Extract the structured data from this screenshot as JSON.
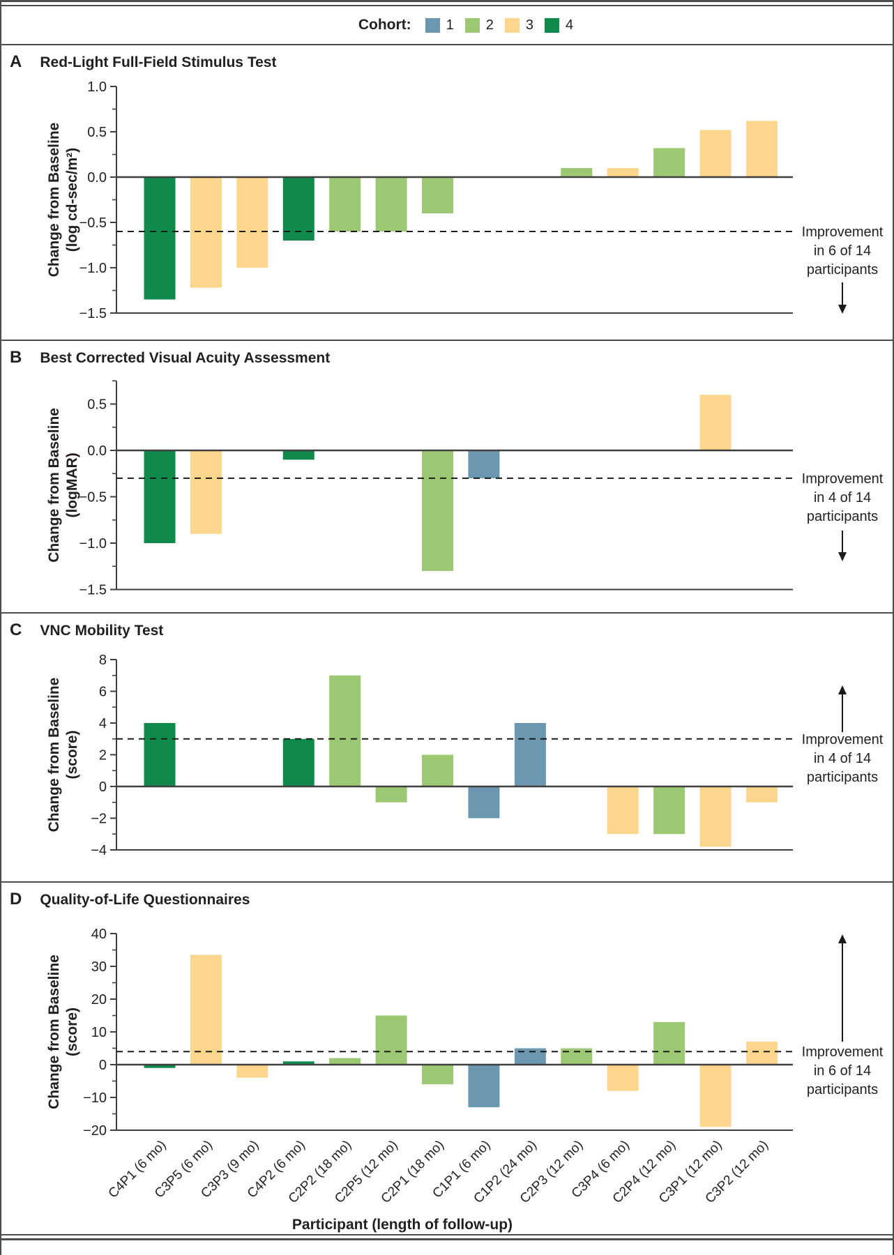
{
  "legend": {
    "label": "Cohort:",
    "items": [
      {
        "label": "1",
        "color": "#6b98b0"
      },
      {
        "label": "2",
        "color": "#9dc873"
      },
      {
        "label": "3",
        "color": "#fbd68c"
      },
      {
        "label": "4",
        "color": "#0f8a4c"
      }
    ]
  },
  "colors": {
    "cohort1": "#6b98b0",
    "cohort2": "#9dc873",
    "cohort3": "#fbd68c",
    "cohort4": "#0f8a4c",
    "axis": "#3f3f3f",
    "dashed": "#1a1a1a",
    "text": "#231f20"
  },
  "x_axis": {
    "title": "Participant (length of follow-up)",
    "participants": [
      "C4P1 (6 mo)",
      "C3P5 (6 mo)",
      "C3P3 (9 mo)",
      "C4P2 (6 mo)",
      "C2P2 (18 mo)",
      "C2P5 (12 mo)",
      "C2P1 (18 mo)",
      "C1P1 (6 mo)",
      "C1P2 (24 mo)",
      "C2P3 (12 mo)",
      "C3P4 (6 mo)",
      "C2P4 (12 mo)",
      "C3P1 (12 mo)",
      "C3P2 (12 mo)"
    ],
    "cohorts": [
      4,
      3,
      3,
      4,
      2,
      2,
      2,
      1,
      1,
      2,
      3,
      2,
      3,
      3
    ]
  },
  "chart_data": [
    {
      "type": "bar",
      "panel": "A",
      "title": "Red-Light Full-Field Stimulus Test",
      "ylabel": [
        "Change from Baseline",
        "(log cd-sec/m²)"
      ],
      "categories": [
        "C4P1 (6 mo)",
        "C3P5 (6 mo)",
        "C3P3 (9 mo)",
        "C4P2 (6 mo)",
        "C2P2 (18 mo)",
        "C2P5 (12 mo)",
        "C2P1 (18 mo)",
        "C1P1 (6 mo)",
        "C1P2 (24 mo)",
        "C2P3 (12 mo)",
        "C3P4 (6 mo)",
        "C2P4 (12 mo)",
        "C3P1 (12 mo)",
        "C3P2 (12 mo)"
      ],
      "cohorts": [
        4,
        3,
        3,
        4,
        2,
        2,
        2,
        1,
        1,
        2,
        3,
        2,
        3,
        3
      ],
      "values": [
        -1.35,
        -1.22,
        -1.0,
        -0.7,
        -0.6,
        -0.6,
        -0.4,
        null,
        null,
        0.1,
        0.1,
        0.32,
        0.52,
        0.62
      ],
      "ylim": [
        -1.5,
        1.0
      ],
      "ytick_values": [
        1.0,
        0.5,
        0.0,
        -0.5,
        -1.0,
        -1.5
      ],
      "ytick_labels": [
        "1.0",
        "0.5",
        "0.0",
        "−0.5",
        "−1.0",
        "−1.5"
      ],
      "minor_tick_step": 0.25,
      "dashed_line": -0.6,
      "annotation": [
        "Improvement",
        "in 6 of 14",
        "participants"
      ],
      "arrow_direction": "down",
      "grid": false,
      "legend_position": "top"
    },
    {
      "type": "bar",
      "panel": "B",
      "title": "Best Corrected Visual Acuity Assessment",
      "ylabel": [
        "Change from Baseline",
        "(logMAR)"
      ],
      "categories": [
        "C4P1 (6 mo)",
        "C3P5 (6 mo)",
        "C3P3 (9 mo)",
        "C4P2 (6 mo)",
        "C2P2 (18 mo)",
        "C2P5 (12 mo)",
        "C2P1 (18 mo)",
        "C1P1 (6 mo)",
        "C1P2 (24 mo)",
        "C2P3 (12 mo)",
        "C3P4 (6 mo)",
        "C2P4 (12 mo)",
        "C3P1 (12 mo)",
        "C3P2 (12 mo)"
      ],
      "cohorts": [
        4,
        3,
        3,
        4,
        2,
        2,
        2,
        1,
        1,
        2,
        3,
        2,
        3,
        3
      ],
      "values": [
        -1.0,
        -0.9,
        null,
        -0.1,
        null,
        null,
        -1.3,
        -0.3,
        null,
        null,
        null,
        null,
        0.6,
        null
      ],
      "ylim": [
        -1.5,
        0.75
      ],
      "ytick_values": [
        0.5,
        0.0,
        -0.5,
        -1.0,
        -1.5
      ],
      "ytick_labels": [
        "0.5",
        "0.0",
        "−0.5",
        "−1.0",
        "−1.5"
      ],
      "minor_tick_step": 0.25,
      "dashed_line": -0.3,
      "annotation": [
        "Improvement",
        "in 4 of 14",
        "participants"
      ],
      "arrow_direction": "down",
      "grid": false
    },
    {
      "type": "bar",
      "panel": "C",
      "title": "VNC Mobility Test",
      "ylabel": [
        "Change from Baseline",
        "(score)"
      ],
      "categories": [
        "C4P1 (6 mo)",
        "C3P5 (6 mo)",
        "C3P3 (9 mo)",
        "C4P2 (6 mo)",
        "C2P2 (18 mo)",
        "C2P5 (12 mo)",
        "C2P1 (18 mo)",
        "C1P1 (6 mo)",
        "C1P2 (24 mo)",
        "C2P3 (12 mo)",
        "C3P4 (6 mo)",
        "C2P4 (12 mo)",
        "C3P1 (12 mo)",
        "C3P2 (12 mo)"
      ],
      "cohorts": [
        4,
        3,
        3,
        4,
        2,
        2,
        2,
        1,
        1,
        2,
        3,
        2,
        3,
        3
      ],
      "values": [
        4,
        null,
        null,
        3,
        7,
        -1,
        2,
        -2,
        4,
        null,
        -3,
        -3,
        -3.8,
        -1
      ],
      "ylim": [
        -4,
        8
      ],
      "ytick_values": [
        8,
        6,
        4,
        2,
        0,
        -2,
        -4
      ],
      "ytick_labels": [
        "8",
        "6",
        "4",
        "2",
        "0",
        "−2",
        "−4"
      ],
      "minor_tick_step": 1,
      "dashed_line": 3,
      "annotation": [
        "Improvement",
        "in 4 of 14",
        "participants"
      ],
      "arrow_direction": "up",
      "grid": false
    },
    {
      "type": "bar",
      "panel": "D",
      "title": "Quality-of-Life Questionnaires",
      "ylabel": [
        "Change from Baseline",
        "(score)"
      ],
      "categories": [
        "C4P1 (6 mo)",
        "C3P5 (6 mo)",
        "C3P3 (9 mo)",
        "C4P2 (6 mo)",
        "C2P2 (18 mo)",
        "C2P5 (12 mo)",
        "C2P1 (18 mo)",
        "C1P1 (6 mo)",
        "C1P2 (24 mo)",
        "C2P3 (12 mo)",
        "C3P4 (6 mo)",
        "C2P4 (12 mo)",
        "C3P1 (12 mo)",
        "C3P2 (12 mo)"
      ],
      "cohorts": [
        4,
        3,
        3,
        4,
        2,
        2,
        2,
        1,
        1,
        2,
        3,
        2,
        3,
        3
      ],
      "values": [
        -1,
        33.5,
        -4,
        1,
        2,
        15,
        -6,
        -13,
        5,
        5,
        -8,
        13,
        -19,
        7
      ],
      "ylim": [
        -20,
        40
      ],
      "ytick_values": [
        40,
        30,
        20,
        10,
        0,
        -10,
        -20
      ],
      "ytick_labels": [
        "40",
        "30",
        "20",
        "10",
        "0",
        "−10",
        "−20"
      ],
      "minor_tick_step": 5,
      "dashed_line": 4,
      "annotation": [
        "Improvement",
        "in 6 of 14",
        "participants"
      ],
      "arrow_direction": "up",
      "grid": false,
      "xlabel": "Participant (length of follow-up)"
    }
  ]
}
